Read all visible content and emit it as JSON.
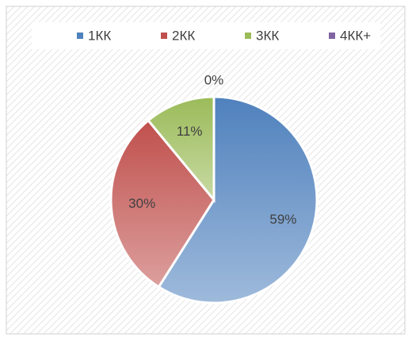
{
  "chart_data": {
    "type": "pie",
    "categories": [
      "1КК",
      "2КК",
      "3КК",
      "4КК+"
    ],
    "values": [
      59,
      30,
      11,
      0
    ],
    "value_labels": [
      "59%",
      "30%",
      "11%",
      "0%"
    ],
    "colors": [
      "#4f81bd",
      "#c0504d",
      "#9bbb59",
      "#8064a2"
    ],
    "legend": "top"
  }
}
